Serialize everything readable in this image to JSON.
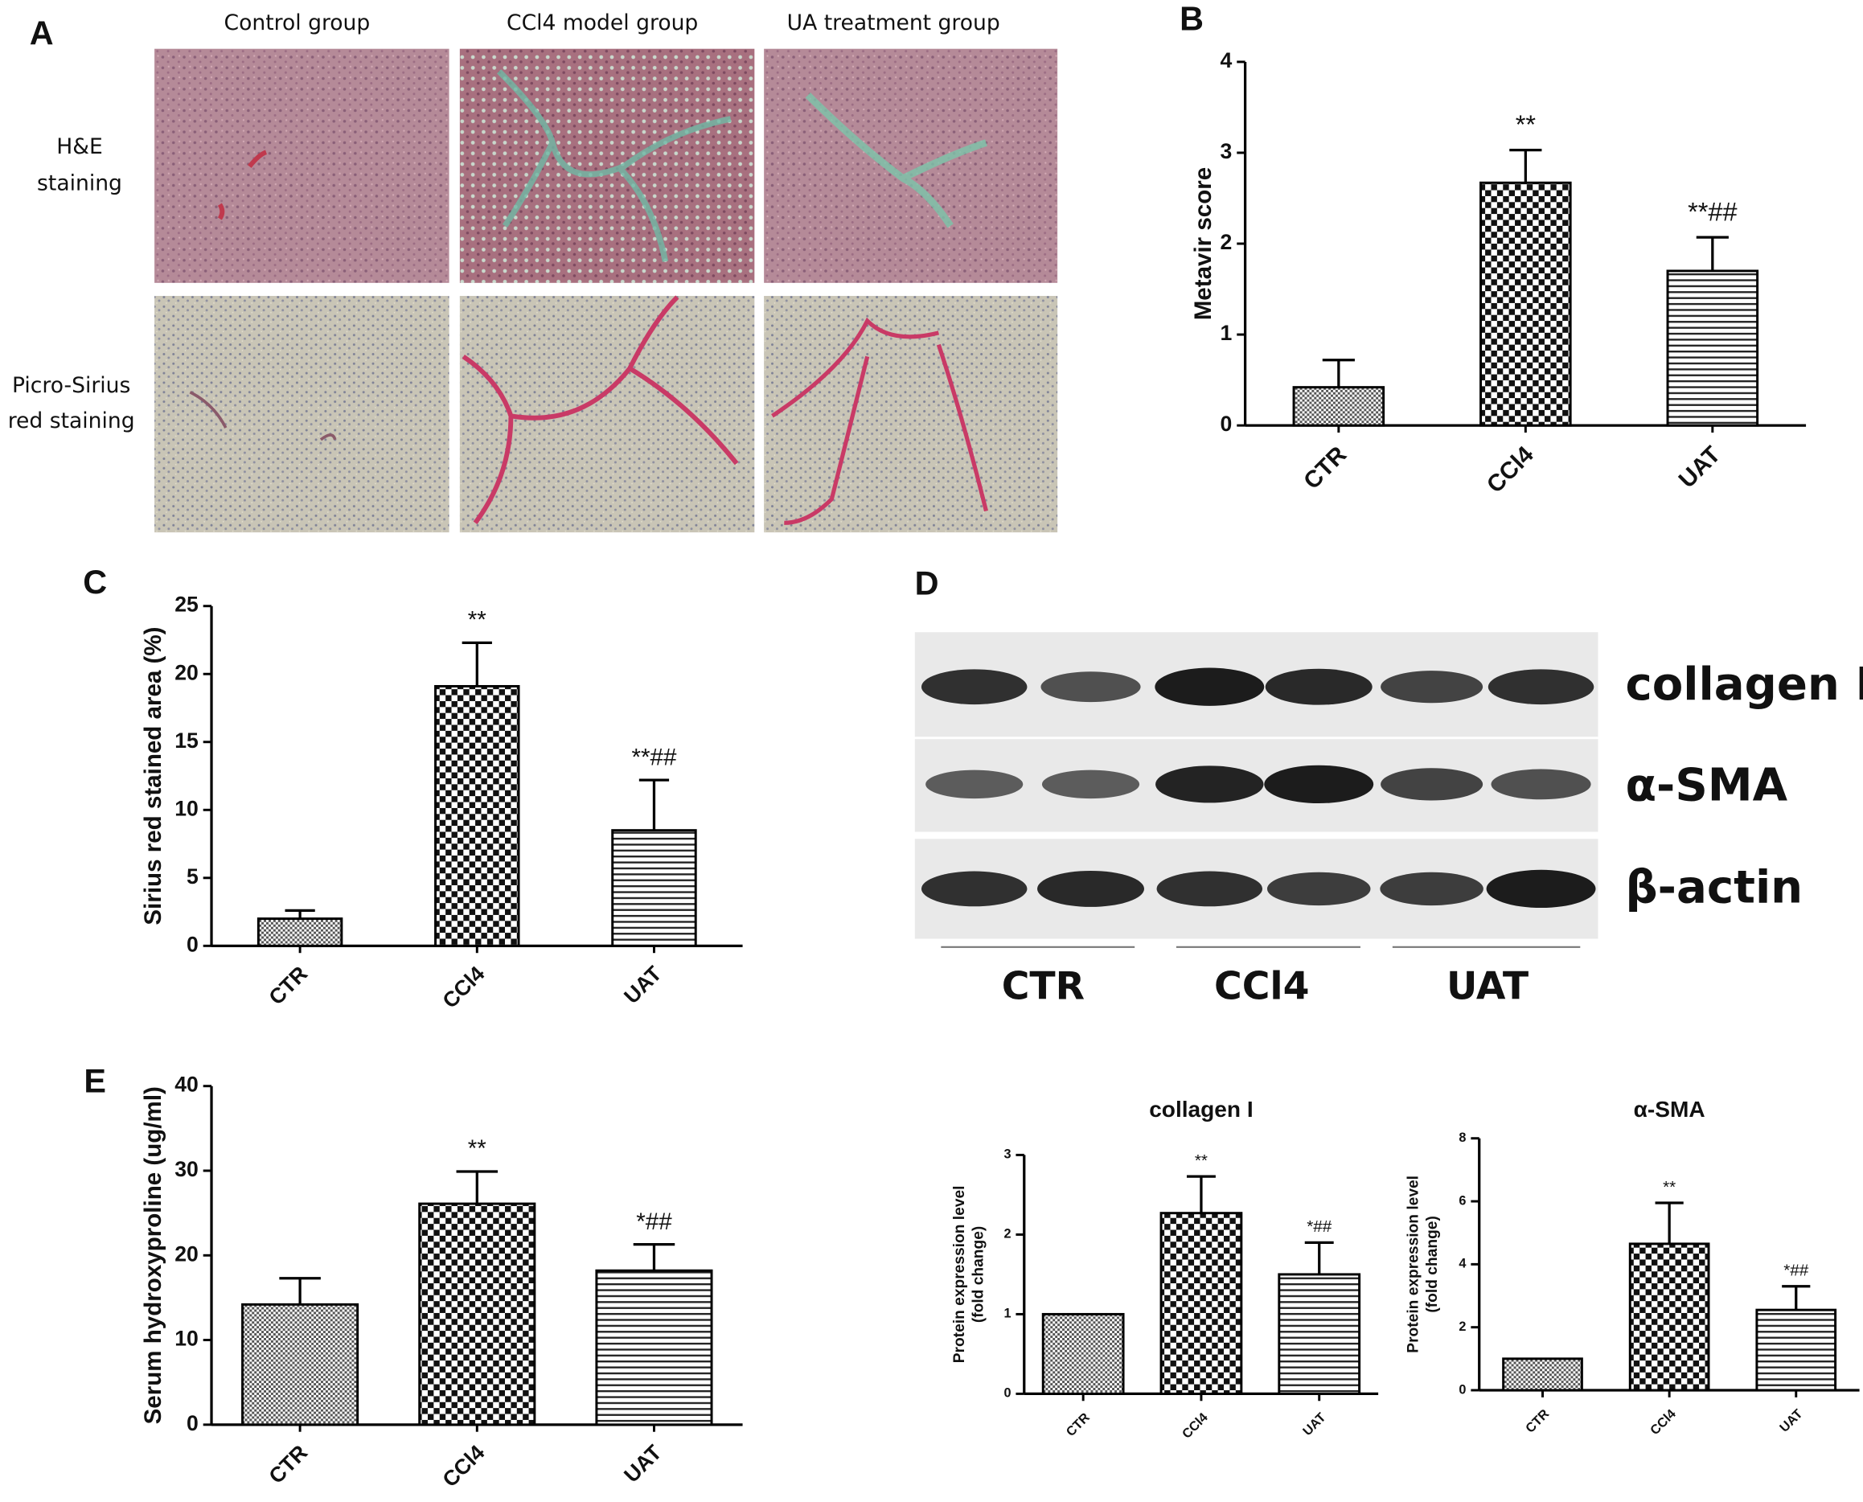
{
  "panel_a": {
    "label": "A",
    "columns": [
      "Control group",
      "CCl4 model group",
      "UA treatment group"
    ],
    "rows": [
      [
        "H&E",
        "staining"
      ],
      [
        "Picro-Sirius",
        "red staining"
      ]
    ]
  },
  "panel_d_blot": {
    "label": "D",
    "bands": [
      "collagen I",
      "α-SMA",
      "β-actin"
    ],
    "groups": [
      "CTR",
      "CCl4",
      "UAT"
    ]
  },
  "chart_data": [
    {
      "type": "bar",
      "panel": "B",
      "y_label": "Metavir score",
      "categories": [
        "CTR",
        "CCl4",
        "UAT"
      ],
      "values": [
        0.42,
        2.67,
        1.7
      ],
      "errors": [
        0.3,
        0.36,
        0.37
      ],
      "annotations": [
        null,
        "**",
        "**##"
      ],
      "patterns": [
        "dots",
        "checker",
        "hlines"
      ],
      "ylim": [
        0,
        4
      ],
      "yticks": [
        0,
        1,
        2,
        3,
        4
      ]
    },
    {
      "type": "bar",
      "panel": "C",
      "y_label": "Sirius red stained area (%)",
      "categories": [
        "CTR",
        "CCl4",
        "UAT"
      ],
      "values": [
        2.0,
        19.1,
        8.5
      ],
      "errors": [
        0.6,
        3.2,
        3.7
      ],
      "annotations": [
        null,
        "**",
        "**##"
      ],
      "patterns": [
        "dots",
        "checker",
        "hlines"
      ],
      "ylim": [
        0,
        25
      ],
      "yticks": [
        0,
        5,
        10,
        15,
        20,
        25
      ]
    },
    {
      "type": "bar",
      "panel": "E",
      "y_label": "Serum hydroxyproline (ug/ml)",
      "categories": [
        "CTR",
        "CCl4",
        "UAT"
      ],
      "values": [
        14.2,
        26.1,
        18.2
      ],
      "errors": [
        3.1,
        3.8,
        3.1
      ],
      "annotations": [
        null,
        "**",
        "*##"
      ],
      "patterns": [
        "dots",
        "checker",
        "hlines"
      ],
      "ylim": [
        0,
        40
      ],
      "yticks": [
        0,
        10,
        20,
        30,
        40
      ]
    },
    {
      "type": "bar",
      "title": "collagen I",
      "y_label": [
        "Protein expression level",
        "(fold change)"
      ],
      "categories": [
        "CTR",
        "CCl4",
        "UAT"
      ],
      "values": [
        1.0,
        2.27,
        1.5
      ],
      "errors": [
        null,
        0.46,
        0.4
      ],
      "annotations": [
        null,
        "**",
        "*##"
      ],
      "patterns": [
        "dots",
        "checker",
        "hlines"
      ],
      "ylim": [
        0,
        3
      ],
      "yticks": [
        0,
        1,
        2,
        3
      ]
    },
    {
      "type": "bar",
      "title": "α-SMA",
      "y_label": [
        "Protein expression level",
        "(fold change)"
      ],
      "categories": [
        "CTR",
        "CCl4",
        "UAT"
      ],
      "values": [
        1.0,
        4.65,
        2.55
      ],
      "errors": [
        null,
        1.3,
        0.75
      ],
      "annotations": [
        null,
        "**",
        "*##"
      ],
      "patterns": [
        "dots",
        "checker",
        "hlines"
      ],
      "ylim": [
        0,
        8
      ],
      "yticks": [
        0,
        2,
        4,
        6,
        8
      ]
    }
  ]
}
